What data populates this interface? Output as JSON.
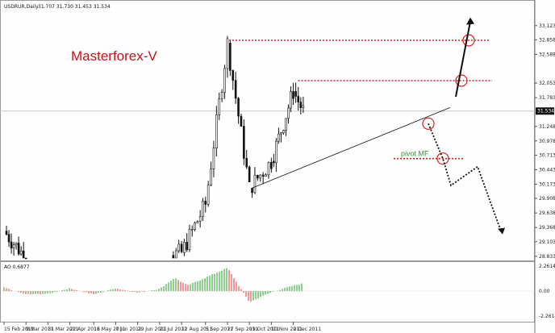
{
  "header": {
    "symbol": "USDRUR,Daily",
    "ohlc": "31.707 31.730 31.453 31.534"
  },
  "watermark": "Masterforex-V",
  "price_tag": "31.534",
  "ao_label": "AO 0.6877",
  "pivot_label": "pivot MF",
  "colors": {
    "candle": "#111111",
    "level_line": "#cc2222",
    "circle": "#cc2222",
    "trend_line": "#111111",
    "ao_up": "#33a833",
    "ao_down": "#e04848",
    "price_line": "#c8c8c8",
    "pivot_text": "#3a8a3a",
    "watermark": "#c0141c"
  },
  "chart_data": [
    {
      "type": "candlestick",
      "title": "USDRUR,Daily",
      "y_axis_side": "right",
      "y_ticks": [
        "33.123",
        "32.858",
        "32.588",
        "32.053",
        "31.783",
        "31.248",
        "30.978",
        "30.713",
        "30.443",
        "30.173",
        "29.908",
        "29.638",
        "29.368",
        "29.103",
        "28.833"
      ],
      "x_ticks": [
        "15 Feb 2011",
        "9 Mar 2011",
        "31 Mar 2011",
        "22 Apr 2011",
        "16 May 2011",
        "7 Jun 2011",
        "29 Jun 2011",
        "21 Jul 2011",
        "12 Aug 2011",
        "5 Sep 2011",
        "27 Sep 2011",
        "19 Oct 2011",
        "10 Nov 2011",
        "2 Dec 2011"
      ],
      "ylim": [
        28.8,
        33.3
      ],
      "last_close": 31.534,
      "segments": [
        {
          "from": "15 Feb 2011",
          "to": "9 Mar 2011",
          "y_from": 29.3,
          "y_to": 28.8
        },
        {
          "from": "1 Aug 2011",
          "to": "12 Aug 2011",
          "y_from": 28.85,
          "y_to": 28.9
        },
        {
          "from": "12 Aug 2011",
          "to": "5 Sep 2011",
          "y_from": 28.9,
          "y_to": 29.8
        },
        {
          "from": "5 Sep 2011",
          "to": "27 Sep 2011",
          "y_from": 29.8,
          "y_to": 32.8
        },
        {
          "from": "27 Sep 2011",
          "to": "19 Oct 2011",
          "y_from": 32.8,
          "y_to": 30.1
        },
        {
          "from": "19 Oct 2011",
          "to": "10 Nov 2011",
          "y_from": 30.1,
          "y_to": 30.6
        },
        {
          "from": "10 Nov 2011",
          "to": "2 Dec 2011",
          "y_from": 30.6,
          "y_to": 31.9
        },
        {
          "from": "2 Dec 2011",
          "to": "12 Dec 2011",
          "y_from": 31.9,
          "y_to": 31.534
        }
      ],
      "annotations": {
        "levels": [
          32.85,
          32.1,
          30.65
        ],
        "pivot_label": "pivot MF"
      }
    },
    {
      "type": "bar",
      "title": "AO 0.6877",
      "y_ticks": [
        "2.2614",
        "0.00",
        "-2.2614"
      ],
      "ylim": [
        -2.2614,
        2.2614
      ],
      "series": [
        {
          "name": "AO",
          "points": [
            {
              "date": "15 Feb 2011",
              "value": 0.3
            },
            {
              "date": "9 Mar 2011",
              "value": -0.3
            },
            {
              "date": "31 Mar 2011",
              "value": -0.25
            },
            {
              "date": "22 Apr 2011",
              "value": 0.25
            },
            {
              "date": "16 May 2011",
              "value": -0.3
            },
            {
              "date": "7 Jun 2011",
              "value": 0.25
            },
            {
              "date": "29 Jun 2011",
              "value": -0.15
            },
            {
              "date": "21 Jul 2011",
              "value": 0.2
            },
            {
              "date": "5 Aug 2011",
              "value": 1.2
            },
            {
              "date": "18 Aug 2011",
              "value": 0.5
            },
            {
              "date": "27 Sep 2011",
              "value": 2.1
            },
            {
              "date": "19 Oct 2011",
              "value": -1.0
            },
            {
              "date": "10 Nov 2011",
              "value": -0.1
            },
            {
              "date": "2 Dec 2011",
              "value": 0.5
            },
            {
              "date": "12 Dec 2011",
              "value": 0.6877
            }
          ]
        }
      ]
    }
  ]
}
